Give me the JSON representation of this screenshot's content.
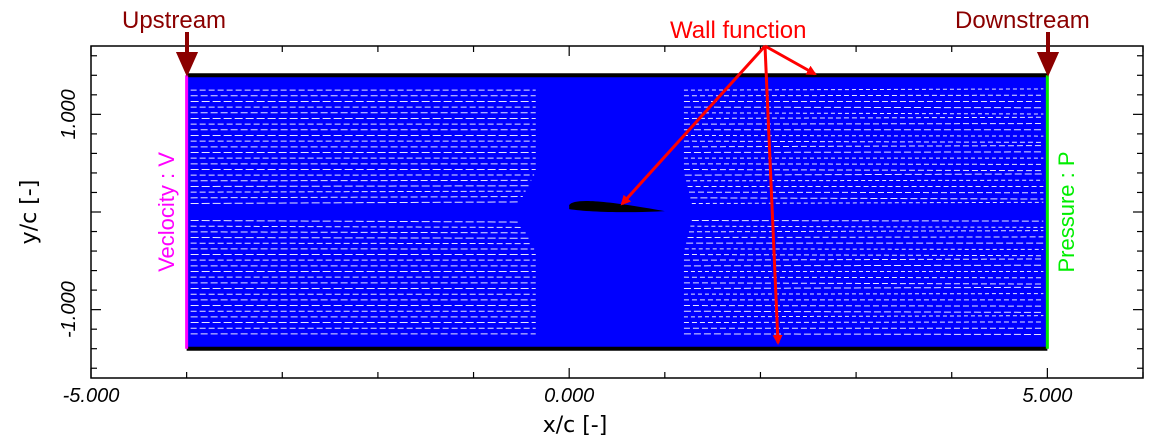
{
  "chart_data": {
    "type": "mesh",
    "xlabel": "x/c [-]",
    "ylabel": "y/c [-]",
    "xlim": [
      -5,
      6
    ],
    "ylim": [
      -1.7,
      1.7
    ],
    "x_ticks": [
      {
        "value": -5,
        "label": "-5.000"
      },
      {
        "value": 0,
        "label": "0.000"
      },
      {
        "value": 5,
        "label": "5.000"
      }
    ],
    "y_ticks": [
      {
        "value": 1,
        "label": "1.000"
      },
      {
        "value": -1,
        "label": "-1.000"
      }
    ],
    "domain": {
      "x": [
        -4,
        5
      ],
      "y": [
        -1.4,
        1.4
      ]
    },
    "airfoil": {
      "x": [
        0,
        1
      ],
      "y": 0.05
    },
    "colors": {
      "mesh": "#0000ff",
      "wall": "#000000",
      "inlet": "#ff00ff",
      "outlet": "#00ee00",
      "annotation": "#8b0000",
      "arrow": "#ff0000"
    }
  },
  "annotations": {
    "upstream": "Upstream",
    "downstream": "Downstream",
    "wall_function": "Wall function",
    "inlet_bc": "Veclocity : V",
    "outlet_bc": "Pressure : P"
  }
}
